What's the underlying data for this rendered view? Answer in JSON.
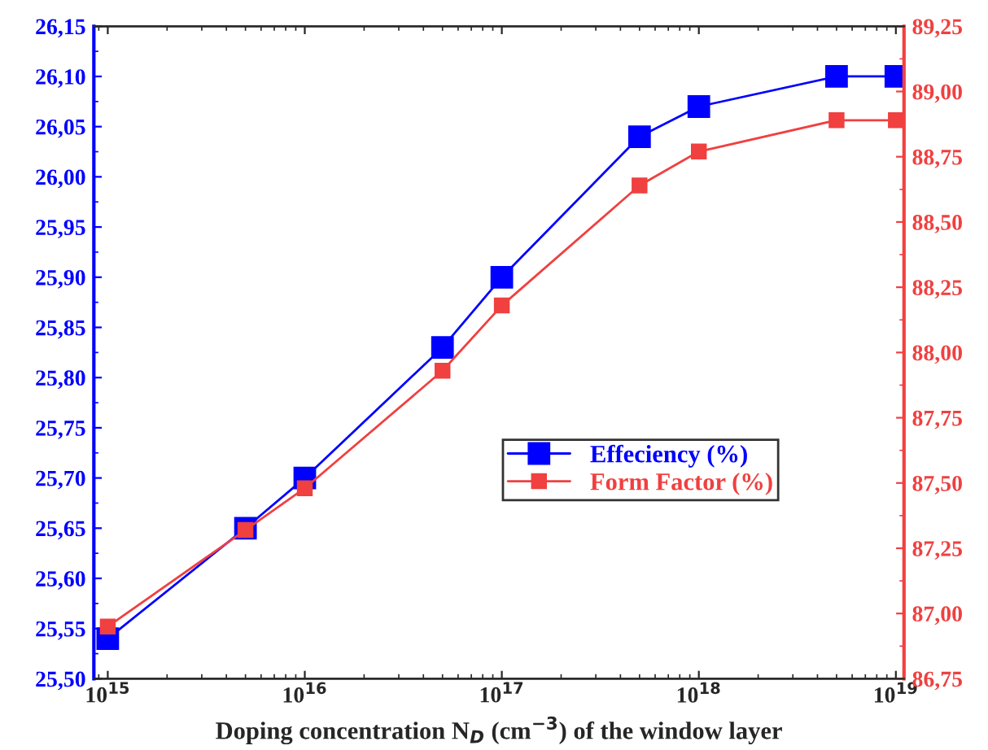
{
  "chart_data": {
    "type": "line",
    "xlabel": "Doping concentration N$_{D}$ (cm$^{−3}$) of the window layer",
    "x": [
      1000000000000000.0,
      5000000000000000.0,
      1e+16,
      5e+16,
      1e+17,
      5e+17,
      1e+18,
      5e+18,
      1e+19
    ],
    "series": [
      {
        "name": "Effeciency (%)",
        "color": "#0000ff",
        "values": [
          25.54,
          25.65,
          25.7,
          25.83,
          25.9,
          26.04,
          26.07,
          26.1,
          26.1
        ]
      },
      {
        "name": "Form Factor (%)",
        "color": "#f04040",
        "axis": "y2",
        "values": [
          86.95,
          87.32,
          87.48,
          87.93,
          88.18,
          88.64,
          88.77,
          88.89,
          88.89
        ]
      }
    ],
    "log": "x",
    "xlim": [
      850000000000000.0,
      1.1e+19
    ],
    "xticks": [
      {
        "value": 1000000000000000.0,
        "label": "10$^{15}$"
      },
      {
        "value": 1e+16,
        "label": "10$^{16}$"
      },
      {
        "value": 1e+17,
        "label": "10$^{17}$"
      },
      {
        "value": 1e+18,
        "label": "10$^{18}$"
      },
      {
        "value": 1e+19,
        "label": "10$^{19}$"
      }
    ],
    "ylim": [
      25.5,
      26.15
    ],
    "yticks": [
      {
        "value": 25.5,
        "label": "25,50"
      },
      {
        "value": 25.55,
        "label": "25,55"
      },
      {
        "value": 25.6,
        "label": "25,60"
      },
      {
        "value": 25.65,
        "label": "25,65"
      },
      {
        "value": 25.7,
        "label": "25,70"
      },
      {
        "value": 25.75,
        "label": "25,75"
      },
      {
        "value": 25.8,
        "label": "25,80"
      },
      {
        "value": 25.85,
        "label": "25,85"
      },
      {
        "value": 25.9,
        "label": "25,90"
      },
      {
        "value": 25.95,
        "label": "25,95"
      },
      {
        "value": 26.0,
        "label": "26,00"
      },
      {
        "value": 26.05,
        "label": "26,05"
      },
      {
        "value": 26.1,
        "label": "26,10"
      },
      {
        "value": 26.15,
        "label": "26,15"
      }
    ],
    "y2lim": [
      86.75,
      89.25
    ],
    "y2ticks": [
      {
        "value": 86.75,
        "label": "86,75"
      },
      {
        "value": 87.0,
        "label": "87,00"
      },
      {
        "value": 87.25,
        "label": "87,25"
      },
      {
        "value": 87.5,
        "label": "87,50"
      },
      {
        "value": 87.75,
        "label": "87,75"
      },
      {
        "value": 88.0,
        "label": "88,00"
      },
      {
        "value": 88.25,
        "label": "88,25"
      },
      {
        "value": 88.5,
        "label": "88,50"
      },
      {
        "value": 88.75,
        "label": "88,75"
      },
      {
        "value": 89.0,
        "label": "89,00"
      },
      {
        "value": 89.25,
        "label": "89,25"
      }
    ],
    "marker": "square",
    "line_style": "solid",
    "legend": "right",
    "grid": false
  }
}
